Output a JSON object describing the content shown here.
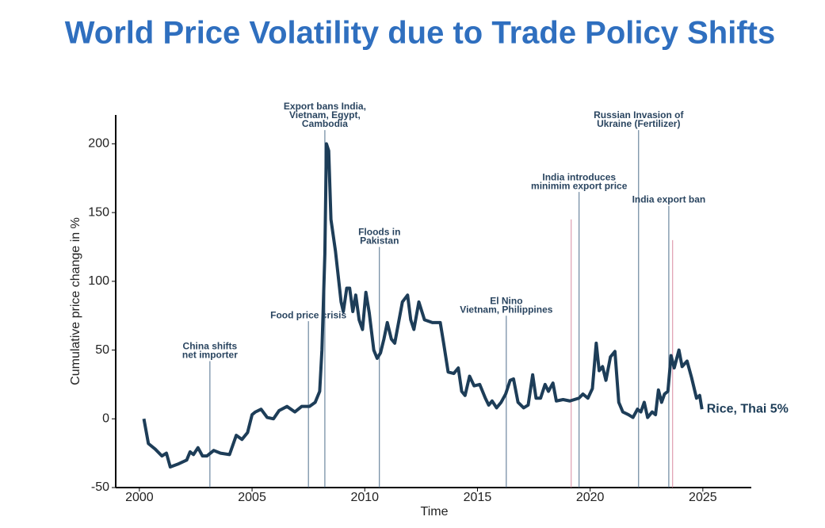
{
  "chart_data": {
    "type": "line",
    "title": "World Price Volatility due to Trade Policy Shifts",
    "x_label": "Time",
    "y_label": "Cumulative price change in %",
    "xlim": [
      1998.95,
      2027.15
    ],
    "ylim": [
      -50,
      221
    ],
    "xticks": [
      2000,
      2005,
      2010,
      2015,
      2020,
      2025
    ],
    "yticks": [
      -50,
      0,
      50,
      100,
      150,
      200
    ],
    "grid": false,
    "x": [
      2000.2,
      2000.4,
      2000.7,
      2001.0,
      2001.2,
      2001.37,
      2001.7,
      2002.1,
      2002.25,
      2002.4,
      2002.6,
      2002.8,
      2003.0,
      2003.3,
      2003.6,
      2004.0,
      2004.3,
      2004.55,
      2004.8,
      2005.0,
      2005.15,
      2005.4,
      2005.67,
      2005.95,
      2006.2,
      2006.55,
      2006.9,
      2007.2,
      2007.55,
      2007.8,
      2008.0,
      2008.1,
      2008.23,
      2008.3,
      2008.4,
      2008.5,
      2008.7,
      2008.95,
      2009.05,
      2009.2,
      2009.33,
      2009.47,
      2009.6,
      2009.75,
      2009.9,
      2010.05,
      2010.2,
      2010.4,
      2010.55,
      2010.7,
      2010.85,
      2011.0,
      2011.18,
      2011.33,
      2011.5,
      2011.67,
      2011.9,
      2012.04,
      2012.18,
      2012.4,
      2012.65,
      2013.0,
      2013.35,
      2013.5,
      2013.7,
      2013.95,
      2014.15,
      2014.3,
      2014.45,
      2014.65,
      2014.85,
      2015.1,
      2015.35,
      2015.5,
      2015.65,
      2015.85,
      2016.05,
      2016.25,
      2016.45,
      2016.6,
      2016.8,
      2017.05,
      2017.25,
      2017.45,
      2017.6,
      2017.8,
      2018.0,
      2018.15,
      2018.35,
      2018.5,
      2018.8,
      2019.1,
      2019.3,
      2019.5,
      2019.68,
      2019.9,
      2020.1,
      2020.27,
      2020.4,
      2020.55,
      2020.7,
      2020.9,
      2021.1,
      2021.27,
      2021.45,
      2021.7,
      2021.9,
      2022.1,
      2022.25,
      2022.4,
      2022.55,
      2022.75,
      2022.9,
      2023.03,
      2023.17,
      2023.3,
      2023.45,
      2023.59,
      2023.73,
      2023.94,
      2024.08,
      2024.3,
      2024.5,
      2024.72,
      2024.86,
      2024.96
    ],
    "series": [
      {
        "name": "Rice, Thai 5%",
        "color": "#1d3d58",
        "values": [
          0,
          -18,
          -22,
          -27,
          -25,
          -35,
          -33,
          -30,
          -24,
          -26,
          -21,
          -27,
          -27,
          -23,
          -25,
          -26,
          -12,
          -15,
          -10,
          3,
          5,
          7,
          1,
          0,
          6,
          9,
          5,
          9,
          9,
          12,
          20,
          50,
          120,
          200,
          195,
          145,
          122,
          85,
          78,
          95,
          95,
          78,
          90,
          72,
          65,
          92,
          77,
          50,
          44,
          48,
          58,
          70,
          58,
          55,
          70,
          85,
          90,
          72,
          65,
          85,
          72,
          70,
          70,
          55,
          34,
          33,
          37,
          20,
          17,
          31,
          24,
          25,
          15,
          10,
          13,
          8,
          12,
          18,
          28,
          29,
          12,
          8,
          10,
          32,
          15,
          15,
          25,
          20,
          26,
          13,
          14,
          13,
          14,
          15,
          18,
          15,
          22,
          55,
          35,
          38,
          28,
          45,
          49,
          12,
          5,
          3,
          1,
          7,
          5,
          12,
          1,
          5,
          3,
          21,
          12,
          18,
          20,
          46,
          37,
          50,
          38,
          42,
          30,
          15,
          17,
          7
        ]
      }
    ],
    "annotations": [
      {
        "x": 2003.13,
        "y": 42,
        "label": [
          "China shifts",
          "net importer"
        ],
        "color": "#4f6f8c"
      },
      {
        "x": 2007.5,
        "y": 71,
        "label": [
          "Food price crisis"
        ],
        "color": "#4f6f8c"
      },
      {
        "x": 2008.23,
        "y": 210,
        "label": [
          "Export bans India,",
          "Vietnam, Egypt,",
          "Cambodia"
        ],
        "color": "#4f6f8c"
      },
      {
        "x": 2010.65,
        "y": 125,
        "label": [
          "Floods in",
          "Pakistan"
        ],
        "color": "#4f6f8c"
      },
      {
        "x": 2016.28,
        "y": 75,
        "label": [
          "El Nino",
          "Vietnam, Philippines"
        ],
        "color": "#4f6f8c"
      },
      {
        "x": 2019.16,
        "y": 145,
        "color": "#d88aa0"
      },
      {
        "x": 2019.51,
        "y": 165,
        "label": [
          "India introduces",
          "minimim export price"
        ],
        "color": "#4f6f8c"
      },
      {
        "x": 2022.15,
        "y": 210,
        "label": [
          "Russian Invasion of",
          "Ukraine (Fertilizer)"
        ],
        "color": "#4f6f8c"
      },
      {
        "x": 2023.49,
        "y": 155,
        "label": [
          "India export ban"
        ],
        "color": "#4f6f8c"
      },
      {
        "x": 2023.66,
        "y": 130,
        "color": "#d88aa0"
      }
    ]
  }
}
